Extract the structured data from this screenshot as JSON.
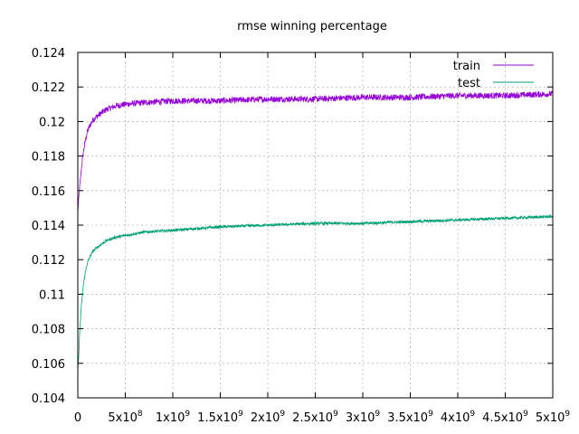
{
  "chart_data": {
    "type": "line",
    "title": "rmse winning percentage",
    "xlabel": "",
    "ylabel": "",
    "xlim": [
      0,
      5000000000
    ],
    "ylim": [
      0.104,
      0.124
    ],
    "grid": true,
    "legend_position": "top-right",
    "x_ticks": [
      {
        "value": 0,
        "mantissa": "0",
        "exponent": ""
      },
      {
        "value": 500000000,
        "mantissa": "5x10",
        "exponent": "8"
      },
      {
        "value": 1000000000,
        "mantissa": "1x10",
        "exponent": "9"
      },
      {
        "value": 1500000000,
        "mantissa": "1.5x10",
        "exponent": "9"
      },
      {
        "value": 2000000000,
        "mantissa": "2x10",
        "exponent": "9"
      },
      {
        "value": 2500000000,
        "mantissa": "2.5x10",
        "exponent": "9"
      },
      {
        "value": 3000000000,
        "mantissa": "3x10",
        "exponent": "9"
      },
      {
        "value": 3500000000,
        "mantissa": "3.5x10",
        "exponent": "9"
      },
      {
        "value": 4000000000,
        "mantissa": "4x10",
        "exponent": "9"
      },
      {
        "value": 4500000000,
        "mantissa": "4.5x10",
        "exponent": "9"
      },
      {
        "value": 5000000000,
        "mantissa": "5x10",
        "exponent": "9"
      }
    ],
    "y_ticks": [
      {
        "value": 0.104,
        "label": "0.104"
      },
      {
        "value": 0.106,
        "label": "0.106"
      },
      {
        "value": 0.108,
        "label": "0.108"
      },
      {
        "value": 0.11,
        "label": "0.11"
      },
      {
        "value": 0.112,
        "label": "0.112"
      },
      {
        "value": 0.114,
        "label": "0.114"
      },
      {
        "value": 0.116,
        "label": "0.116"
      },
      {
        "value": 0.118,
        "label": "0.118"
      },
      {
        "value": 0.12,
        "label": "0.12"
      },
      {
        "value": 0.122,
        "label": "0.122"
      },
      {
        "value": 0.124,
        "label": "0.124"
      }
    ],
    "series": [
      {
        "name": "train",
        "color": "#9400d3",
        "noise": 0.00018,
        "x": [
          0,
          20000000,
          40000000,
          60000000,
          80000000,
          100000000,
          130000000,
          160000000,
          200000000,
          250000000,
          300000000,
          400000000,
          500000000,
          700000000,
          1000000000,
          1500000000,
          2000000000,
          2500000000,
          3000000000,
          3500000000,
          4000000000,
          4500000000,
          5000000000
        ],
        "values": [
          0.1148,
          0.1162,
          0.1174,
          0.1183,
          0.1189,
          0.1194,
          0.1198,
          0.1201,
          0.1203,
          0.1205,
          0.1207,
          0.1209,
          0.121,
          0.1211,
          0.1212,
          0.1212,
          0.1213,
          0.1213,
          0.1214,
          0.1214,
          0.1215,
          0.1215,
          0.1216
        ]
      },
      {
        "name": "test",
        "color": "#009e73",
        "noise": 8e-05,
        "x": [
          0,
          10000000,
          20000000,
          40000000,
          60000000,
          80000000,
          100000000,
          130000000,
          160000000,
          200000000,
          250000000,
          300000000,
          400000000,
          500000000,
          700000000,
          1000000000,
          1500000000,
          2000000000,
          2500000000,
          3000000000,
          3500000000,
          4000000000,
          4500000000,
          5000000000
        ],
        "values": [
          0.1055,
          0.1065,
          0.1078,
          0.1095,
          0.1106,
          0.1113,
          0.1118,
          0.1122,
          0.1125,
          0.1127,
          0.1129,
          0.1131,
          0.1133,
          0.1134,
          0.1136,
          0.1137,
          0.1139,
          0.114,
          0.1141,
          0.1141,
          0.1142,
          0.1143,
          0.1144,
          0.1145
        ]
      }
    ]
  }
}
